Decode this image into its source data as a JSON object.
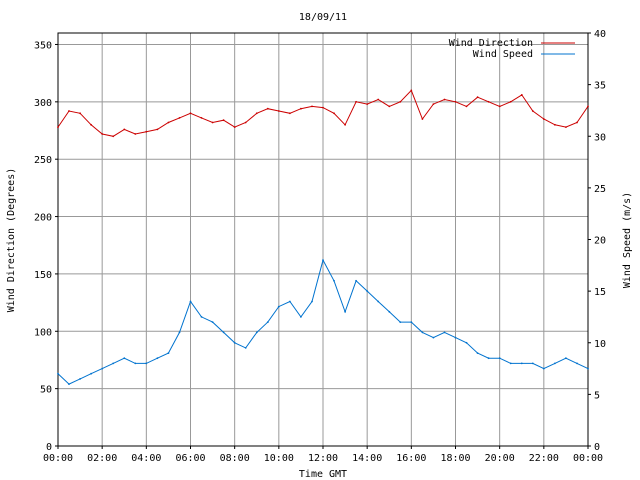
{
  "chart_data": {
    "type": "line",
    "title": "18/09/11",
    "xlabel": "Time GMT",
    "ylabel_left": "Wind Direction (Degrees)",
    "ylabel_right": "Wind Speed (m/s)",
    "grid": true,
    "legend_position": "top-right",
    "x_ticks": [
      "00:00",
      "02:00",
      "04:00",
      "06:00",
      "08:00",
      "10:00",
      "12:00",
      "14:00",
      "16:00",
      "18:00",
      "20:00",
      "22:00",
      "00:00"
    ],
    "x_range_hours": [
      0,
      24
    ],
    "y_left_range": [
      0,
      360
    ],
    "y_left_ticks": [
      0,
      50,
      100,
      150,
      200,
      250,
      300,
      350
    ],
    "y_right_range": [
      0,
      40
    ],
    "y_right_ticks": [
      0,
      5,
      10,
      15,
      20,
      25,
      30,
      35,
      40
    ],
    "series": [
      {
        "name": "Wind Direction",
        "axis": "left",
        "color": "#cc0000",
        "x_hours": [
          0,
          0.5,
          1,
          1.5,
          2,
          2.5,
          3,
          3.5,
          4,
          4.5,
          5,
          5.5,
          6,
          6.5,
          7,
          7.5,
          8,
          8.5,
          9,
          9.5,
          10,
          10.5,
          11,
          11.5,
          12,
          12.5,
          13,
          13.5,
          14,
          14.5,
          15,
          15.5,
          16,
          16.5,
          17,
          17.5,
          18,
          18.5,
          19,
          19.5,
          20,
          20.5,
          21,
          21.5,
          22,
          22.5,
          23,
          23.5,
          24
        ],
        "values": [
          278,
          292,
          290,
          280,
          272,
          270,
          276,
          272,
          274,
          276,
          282,
          286,
          290,
          286,
          282,
          284,
          278,
          282,
          290,
          294,
          292,
          290,
          294,
          296,
          295,
          290,
          280,
          300,
          298,
          302,
          296,
          300,
          310,
          285,
          298,
          302,
          300,
          296,
          304,
          300,
          296,
          300,
          306,
          292,
          285,
          280,
          278,
          282,
          296
        ]
      },
      {
        "name": "Wind Speed",
        "axis": "right",
        "color": "#0073cf",
        "x_hours": [
          0,
          0.5,
          1,
          1.5,
          2,
          2.5,
          3,
          3.5,
          4,
          4.5,
          5,
          5.5,
          6,
          6.5,
          7,
          7.5,
          8,
          8.5,
          9,
          9.5,
          10,
          10.5,
          11,
          11.5,
          12,
          12.5,
          13,
          13.5,
          14,
          14.5,
          15,
          15.5,
          16,
          16.5,
          17,
          17.5,
          18,
          18.5,
          19,
          19.5,
          20,
          20.5,
          21,
          21.5,
          22,
          22.5,
          23,
          23.5,
          24
        ],
        "values": [
          7,
          6,
          6.5,
          7,
          7.5,
          8,
          8.5,
          8,
          8,
          8.5,
          9,
          11,
          14,
          12.5,
          12,
          11,
          10,
          9.5,
          11,
          12,
          13.5,
          14,
          12.5,
          14,
          18,
          16,
          13,
          16,
          15,
          14,
          13,
          12,
          12,
          11,
          10.5,
          11,
          10.5,
          10,
          9,
          8.5,
          8.5,
          8,
          8,
          8,
          7.5,
          8,
          8.5,
          8,
          7.5
        ]
      }
    ]
  }
}
